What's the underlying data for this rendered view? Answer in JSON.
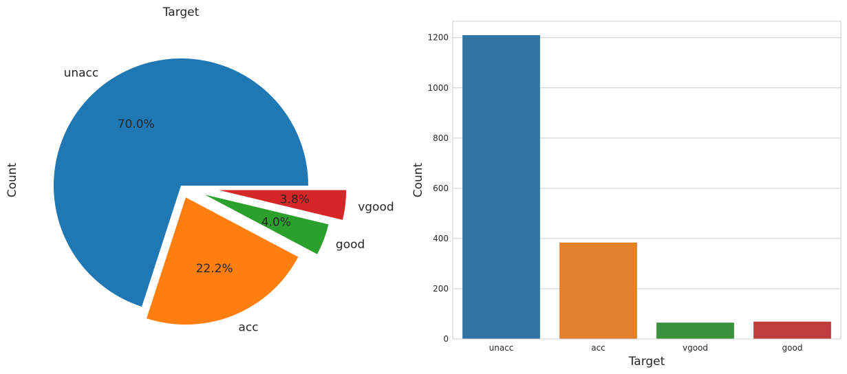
{
  "chart_data": [
    {
      "type": "pie",
      "title": "Target",
      "ylabel": "Count",
      "slices": [
        {
          "label": "unacc",
          "value": 1210,
          "pct_label": "70.0%",
          "color": "#1f77b4",
          "explode": 0
        },
        {
          "label": "acc",
          "value": 384,
          "pct_label": "22.2%",
          "color": "#ff7f0e",
          "explode": 0.1
        },
        {
          "label": "good",
          "value": 69,
          "pct_label": "4.0%",
          "color": "#2ca02c",
          "explode": 0.2
        },
        {
          "label": "vgood",
          "value": 65,
          "pct_label": "3.8%",
          "color": "#d62728",
          "explode": 0.3
        }
      ]
    },
    {
      "type": "bar",
      "xlabel": "Target",
      "ylabel": "Count",
      "categories": [
        "unacc",
        "acc",
        "vgood",
        "good"
      ],
      "values": [
        1210,
        384,
        65,
        69
      ],
      "colors": [
        "#3274a1",
        "#e1812c",
        "#3a923a",
        "#c03d3e"
      ],
      "ylim": [
        0,
        1265
      ],
      "yticks": [
        0,
        200,
        400,
        600,
        800,
        1000,
        1200
      ],
      "grid": true
    }
  ]
}
